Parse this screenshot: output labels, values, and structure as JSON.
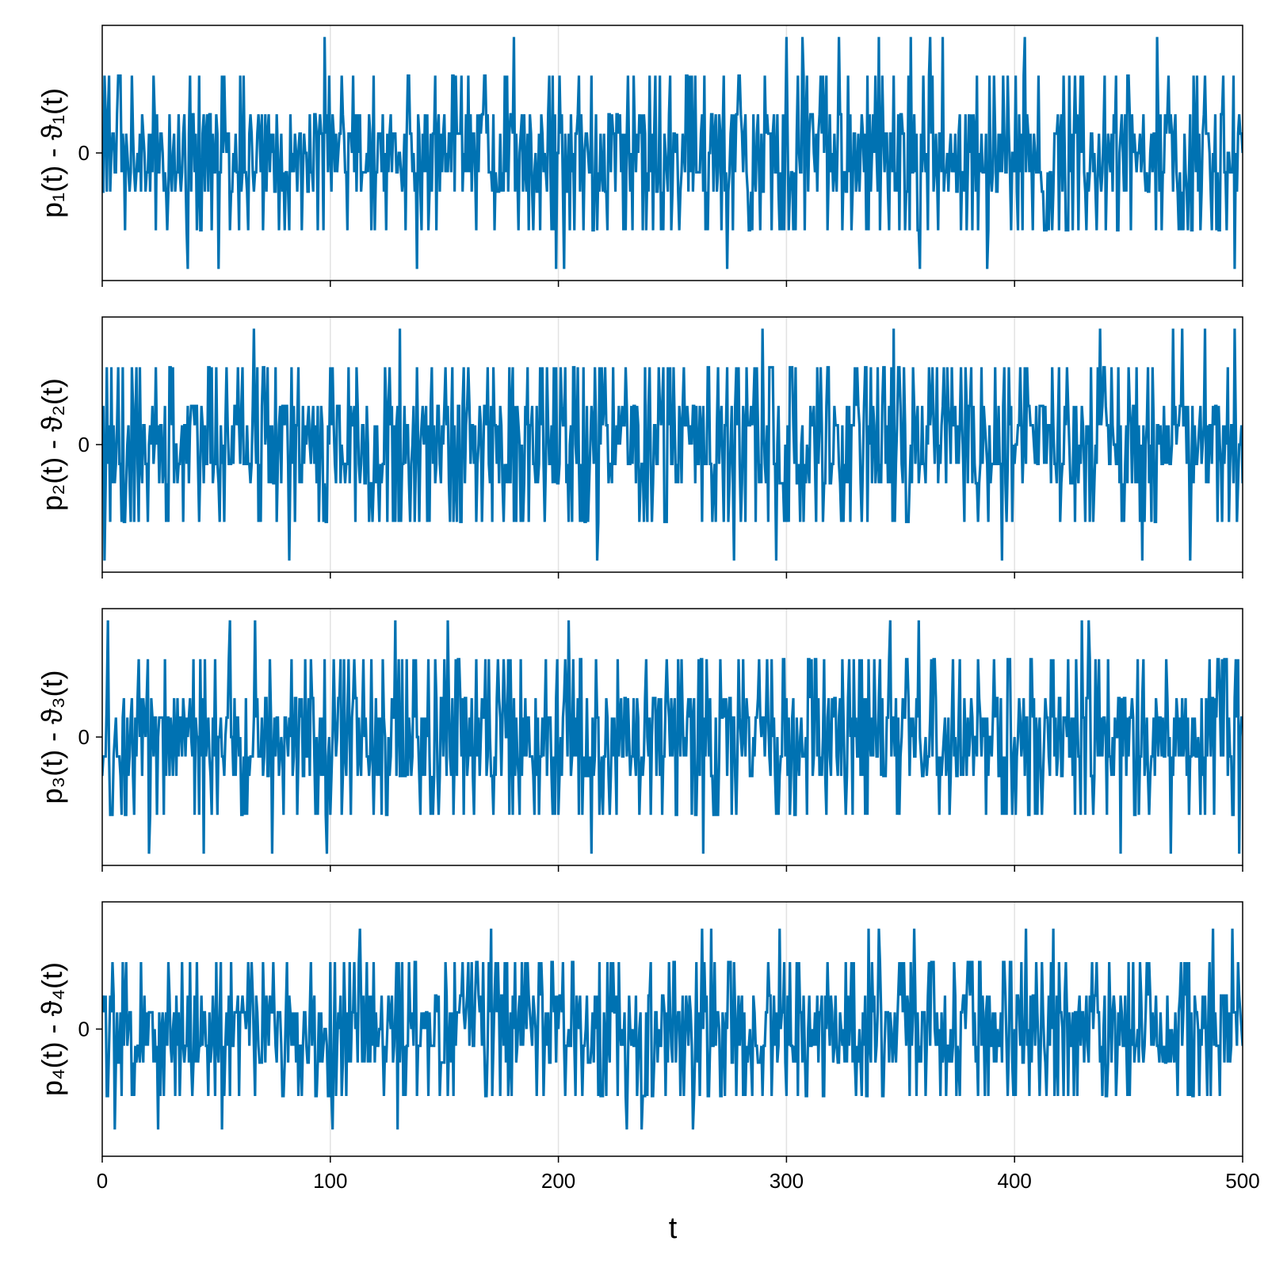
{
  "chart_data": {
    "type": "line",
    "layout": "4 stacked panels sharing the x axis",
    "xlabel": "t",
    "xlim": [
      0,
      500
    ],
    "x_ticks": [
      0,
      100,
      200,
      300,
      400,
      500
    ],
    "x_tick_labels": [
      "0",
      "100",
      "200",
      "300",
      "400",
      "500"
    ],
    "grid": "vertical lines at x ticks",
    "line_color": "#0072b2",
    "sample_step": 0.5,
    "y_levels": [
      -3,
      -2,
      -1,
      -0.5,
      0,
      0.5,
      1,
      2,
      3
    ],
    "panels": [
      {
        "ylabel": "p₁(t) - ϑ₁(t)",
        "ylim": [
          -3.3,
          3.3
        ],
        "y_ticks": [
          0
        ],
        "y_tick_labels": [
          "0"
        ],
        "seed": 11,
        "peaks_up": [
          97.5,
          180.5,
          202.5,
          300,
          307,
          323,
          340.5,
          354.5,
          363,
          368.5,
          404.5,
          462.5
        ],
        "peaks_down": [
          37.5,
          51,
          138,
          199,
          202.5,
          274,
          358.5,
          388,
          496.5
        ]
      },
      {
        "ylabel": "p₂(t) - ϑ₂(t)",
        "ylim": [
          -3.3,
          3.3
        ],
        "y_ticks": [
          0
        ],
        "y_tick_labels": [
          "0"
        ],
        "seed": 23,
        "peaks_up": [
          66.5,
          130.5,
          289.5,
          347,
          437.5,
          469.5,
          473.5,
          483.5,
          496.5
        ],
        "peaks_down": [
          1,
          82,
          217,
          277,
          295.5,
          394.5,
          456,
          477
        ]
      },
      {
        "ylabel": "p₃(t) - ϑ₃(t)",
        "ylim": [
          -3.3,
          3.3
        ],
        "y_ticks": [
          0
        ],
        "y_tick_labels": [
          "0"
        ],
        "seed": 37,
        "peaks_up": [
          2.5,
          56,
          67,
          128.5,
          151.5,
          204.5,
          345.5,
          358,
          429.5,
          432.5
        ],
        "peaks_down": [
          20.5,
          44.5,
          74.5,
          98.5,
          214.5,
          263.5,
          446.5,
          468.5,
          498.5
        ]
      },
      {
        "ylabel": "p₄(t) - ϑ₄(t)",
        "ylim": [
          -3.8,
          3.8
        ],
        "y_ticks": [
          0
        ],
        "y_tick_labels": [
          "0"
        ],
        "seed": 51,
        "peaks_up": [
          113,
          170.5,
          263,
          267,
          297,
          336,
          340.5,
          356,
          405,
          417,
          487,
          495.5
        ],
        "peaks_down": [
          5.5,
          24.5,
          52.5,
          101,
          129.5,
          230,
          236.5,
          259
        ]
      }
    ]
  }
}
